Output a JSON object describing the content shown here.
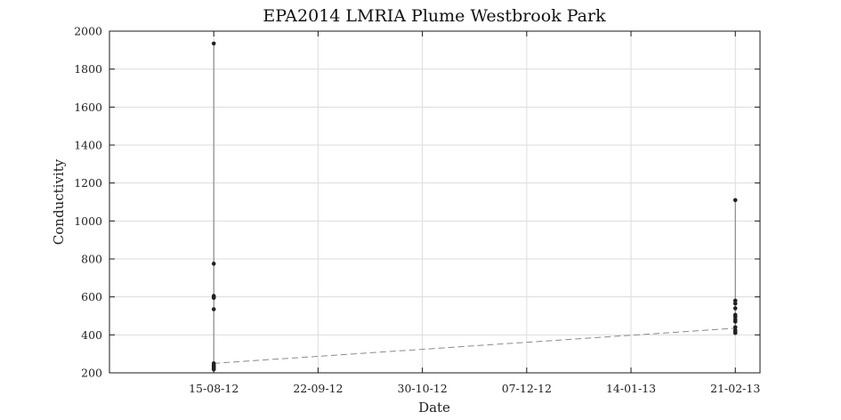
{
  "chart_data": {
    "type": "scatter",
    "title": "EPA2014 LMRIA Plume Westbrook Park",
    "xlabel": "Date",
    "ylabel": "Conductivity",
    "ylim": [
      200,
      2000
    ],
    "yticks": [
      200,
      400,
      600,
      800,
      1000,
      1200,
      1400,
      1600,
      1800,
      2000
    ],
    "xlim": [
      "2012-07-08",
      "2013-03-02"
    ],
    "xticks": [
      "2012-08-15",
      "2012-09-22",
      "2012-10-30",
      "2012-12-07",
      "2013-01-14",
      "2013-02-21"
    ],
    "xtick_labels": [
      "15-08-12",
      "22-09-12",
      "30-10-12",
      "07-12-12",
      "14-01-13",
      "21-02-13"
    ],
    "grid": true,
    "series": [
      {
        "date": "2012-08-15",
        "values": [
          1935,
          775,
          605,
          600,
          595,
          535,
          250,
          240,
          235,
          228,
          222,
          218
        ],
        "color": "#222222"
      },
      {
        "date": "2013-02-21",
        "values": [
          1110,
          580,
          565,
          540,
          505,
          495,
          480,
          470,
          440,
          425,
          415,
          410
        ],
        "color": "#222222"
      }
    ],
    "trend_line": {
      "from": {
        "date": "2012-08-15",
        "value": 250
      },
      "to": {
        "date": "2013-02-21",
        "value": 435
      },
      "style": "dashed",
      "color": "#8a8a8a"
    }
  }
}
